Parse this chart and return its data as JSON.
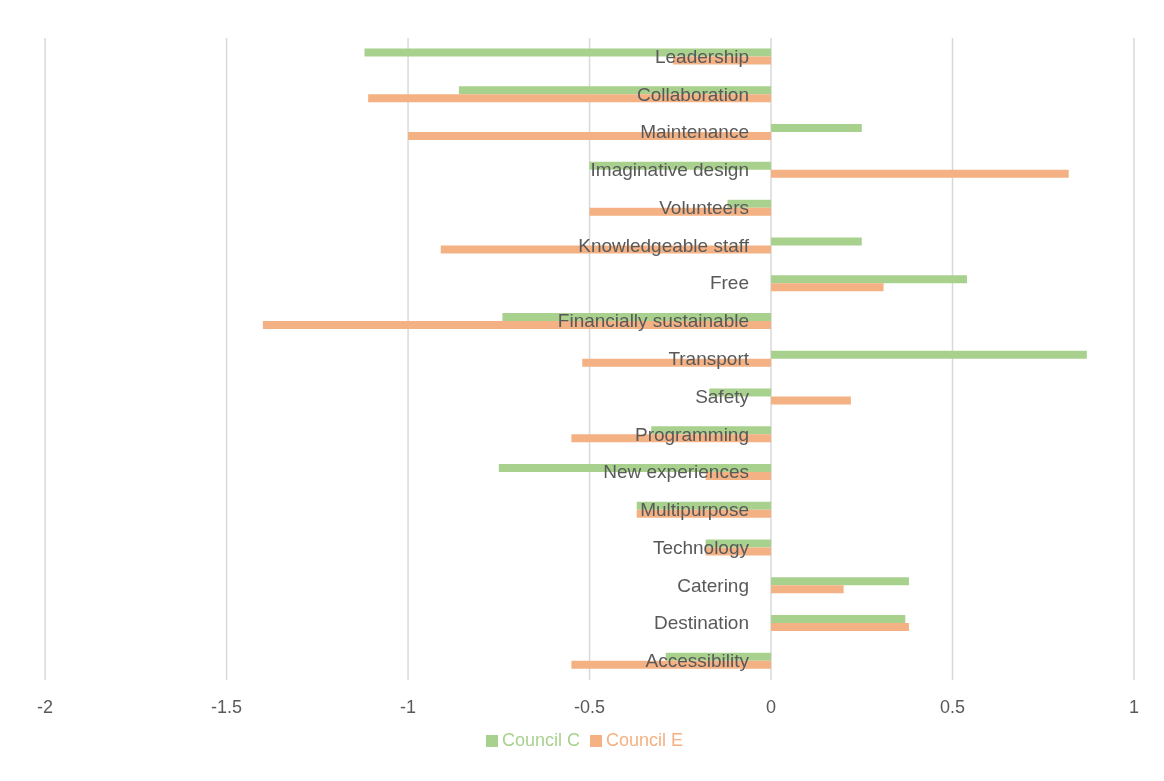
{
  "chart_data": {
    "type": "bar",
    "orientation": "horizontal",
    "categories": [
      "Leadership",
      "Collaboration",
      "Maintenance",
      "Imaginative design",
      "Volunteers",
      "Knowledgeable staff",
      "Free",
      "Financially sustainable",
      "Transport",
      "Safety",
      "Programming",
      "New experiences",
      "Multipurpose",
      "Technology",
      "Catering",
      "Destination",
      "Accessibility"
    ],
    "series": [
      {
        "name": "Council C",
        "color": "#a9d18e",
        "values": [
          -1.12,
          -0.86,
          0.25,
          -0.5,
          -0.12,
          0.25,
          0.54,
          -0.74,
          0.87,
          -0.17,
          -0.33,
          -0.75,
          -0.37,
          -0.18,
          0.38,
          0.37,
          -0.29
        ]
      },
      {
        "name": "Council E",
        "color": "#f4b183",
        "values": [
          -0.27,
          -1.11,
          -1.0,
          0.82,
          -0.5,
          -0.91,
          0.31,
          -1.4,
          -0.52,
          0.22,
          -0.55,
          -0.18,
          -0.37,
          -0.18,
          0.2,
          0.38,
          -0.55
        ]
      }
    ],
    "xlim": [
      -2,
      1
    ],
    "xticks": [
      -2,
      -1.5,
      -1,
      -0.5,
      0,
      0.5,
      1
    ],
    "grid": "x",
    "legend": "bottom"
  }
}
